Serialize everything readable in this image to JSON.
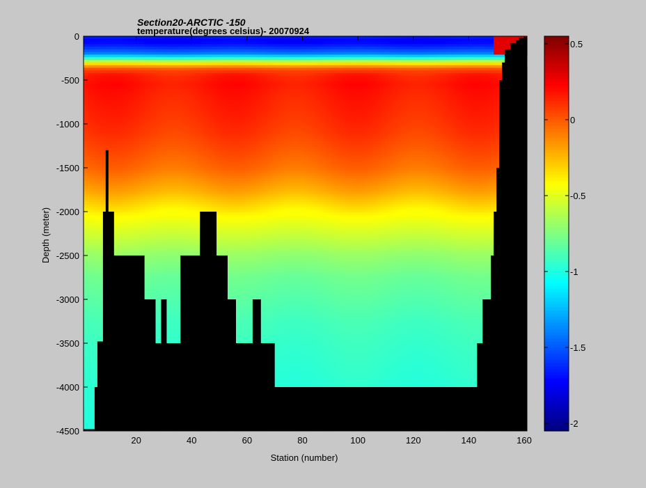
{
  "chart_data": {
    "type": "heatmap",
    "title": "Section20-ARCTIC  -150",
    "subtitle": "temperature(degrees  celsius)- 20070924",
    "xlabel": "Station (number)",
    "ylabel": "Depth (meter)",
    "xlim": [
      1,
      161
    ],
    "ylim": [
      -4500,
      0
    ],
    "x_ticks": [
      20,
      40,
      60,
      80,
      100,
      120,
      140,
      160
    ],
    "y_ticks": [
      0,
      -500,
      -1000,
      -1500,
      -2000,
      -2500,
      -3000,
      -3500,
      -4000,
      -4500
    ],
    "colorbar": {
      "range": [
        -2.05,
        0.55
      ],
      "ticks": [
        0.5,
        0,
        -0.5,
        -1,
        -1.5,
        -2
      ],
      "colormap": "jet"
    },
    "bottom_depth": {
      "stations": [
        1,
        4,
        5,
        6,
        8,
        9,
        10,
        12,
        17,
        23,
        27,
        29,
        31,
        36,
        43,
        49,
        53,
        56,
        60,
        62,
        65,
        67,
        70,
        72,
        90,
        110,
        125,
        140,
        143,
        145,
        148,
        149,
        150,
        151,
        152,
        153,
        155,
        157,
        158,
        160,
        161
      ],
      "depth": [
        -4480,
        -4480,
        -4000,
        -3480,
        -2000,
        -1300,
        -2000,
        -2500,
        -2500,
        -3000,
        -3500,
        -3000,
        -3500,
        -2500,
        -2000,
        -2500,
        -3000,
        -3500,
        -3500,
        -3000,
        -3500,
        -3500,
        -4000,
        -4000,
        -4000,
        -4000,
        -4000,
        -4000,
        -3500,
        -3000,
        -2500,
        -2000,
        -1500,
        -500,
        -300,
        -150,
        -80,
        -40,
        -20,
        -10,
        -10
      ]
    },
    "profile": {
      "depths": [
        0,
        -60,
        -130,
        -200,
        -260,
        -320,
        -380,
        -450,
        -550,
        -700,
        -900,
        -1100,
        -1300,
        -1500,
        -1750,
        -2000,
        -2250,
        -2500,
        -2750,
        -3000,
        -3250,
        -3500,
        -3750,
        -4000,
        -4500
      ],
      "temps": [
        -1.65,
        -1.75,
        -1.6,
        -1.4,
        -0.9,
        -0.3,
        0.05,
        0.15,
        0.18,
        0.15,
        0.12,
        0.08,
        0.02,
        -0.05,
        -0.2,
        -0.4,
        -0.55,
        -0.7,
        -0.8,
        -0.85,
        -0.9,
        -0.93,
        -0.95,
        -0.97,
        -1.0
      ]
    }
  }
}
